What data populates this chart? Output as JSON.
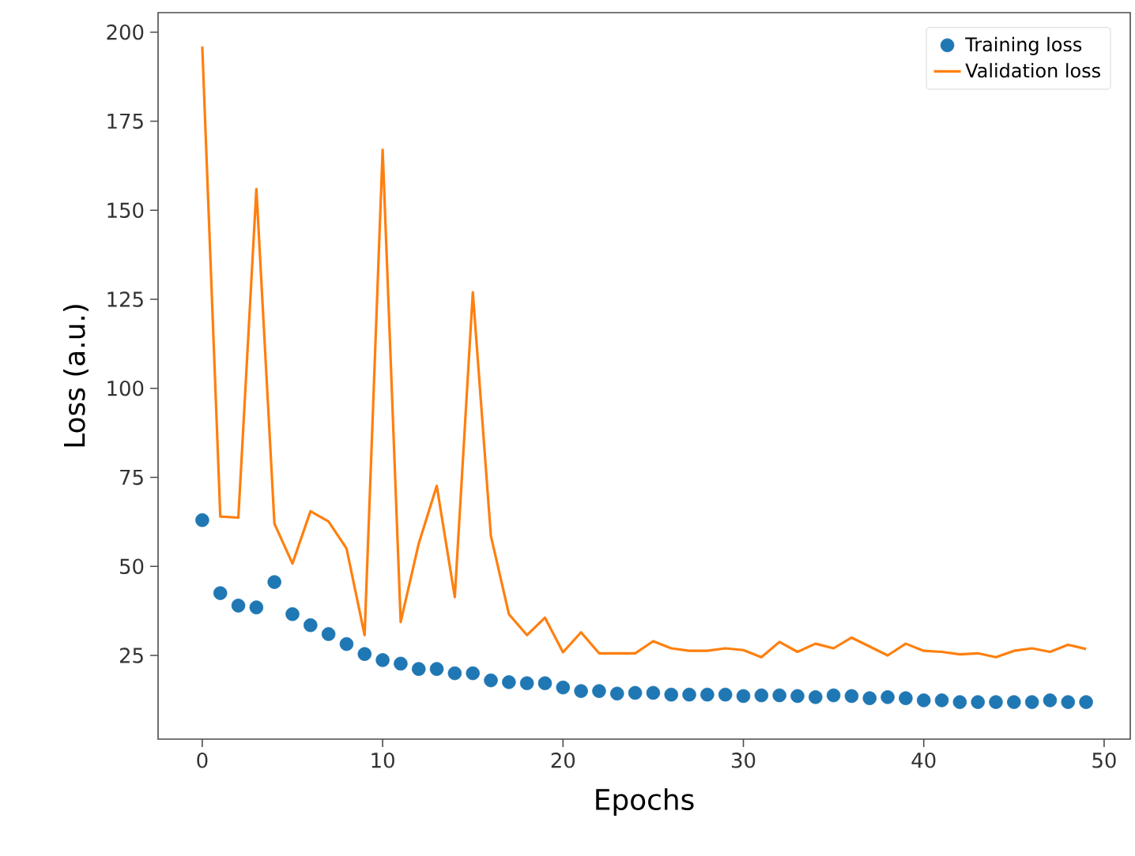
{
  "chart_data": {
    "type": "line",
    "xlabel": "Epochs",
    "ylabel": "Loss (a.u.)",
    "x": [
      0,
      1,
      2,
      3,
      4,
      5,
      6,
      7,
      8,
      9,
      10,
      11,
      12,
      13,
      14,
      15,
      16,
      17,
      18,
      19,
      20,
      21,
      22,
      23,
      24,
      25,
      26,
      27,
      28,
      29,
      30,
      31,
      32,
      33,
      34,
      35,
      36,
      37,
      38,
      39,
      40,
      41,
      42,
      43,
      44,
      45,
      46,
      47,
      48,
      49
    ],
    "series": [
      {
        "name": "Training loss",
        "type": "scatter",
        "marker": "circle",
        "color": "#1f77b4",
        "values": [
          63,
          42.5,
          39,
          38.5,
          45.6,
          36.6,
          33.5,
          31,
          28.2,
          25.4,
          23.7,
          22.7,
          21.2,
          21.2,
          20,
          20,
          18,
          17.5,
          17.2,
          17.2,
          16,
          15,
          15,
          14.3,
          14.5,
          14.5,
          14,
          14,
          14,
          14,
          13.6,
          13.8,
          13.8,
          13.6,
          13.3,
          13.8,
          13.6,
          13,
          13.3,
          13,
          12.4,
          12.4,
          11.9,
          11.9,
          11.9,
          11.9,
          11.9,
          12.4,
          11.9,
          11.9
        ]
      },
      {
        "name": "Validation loss",
        "color": "#ff7f0e",
        "values": [
          196,
          64,
          63.7,
          156,
          62,
          50.8,
          65.5,
          62.6,
          55,
          30.7,
          167,
          34.4,
          56.4,
          72.6,
          41.4,
          127,
          58.6,
          36.6,
          30.7,
          35.6,
          25.9,
          31.5,
          25.6,
          25.6,
          25.6,
          29,
          27,
          26.3,
          26.3,
          27,
          26.5,
          24.5,
          28.8,
          26,
          28.3,
          27,
          30,
          27.5,
          25,
          28.3,
          26.3,
          26,
          25.3,
          25.6,
          24.5,
          26.3,
          27,
          26,
          28,
          26.8
        ]
      }
    ],
    "xlim": [
      -2.45,
      51.45
    ],
    "ylim": [
      1.5,
      205.5
    ],
    "xticks": [
      0,
      10,
      20,
      30,
      40,
      50
    ],
    "yticks": [
      25,
      50,
      75,
      100,
      125,
      150,
      175,
      200
    ],
    "legend": "top right",
    "grid": false
  }
}
